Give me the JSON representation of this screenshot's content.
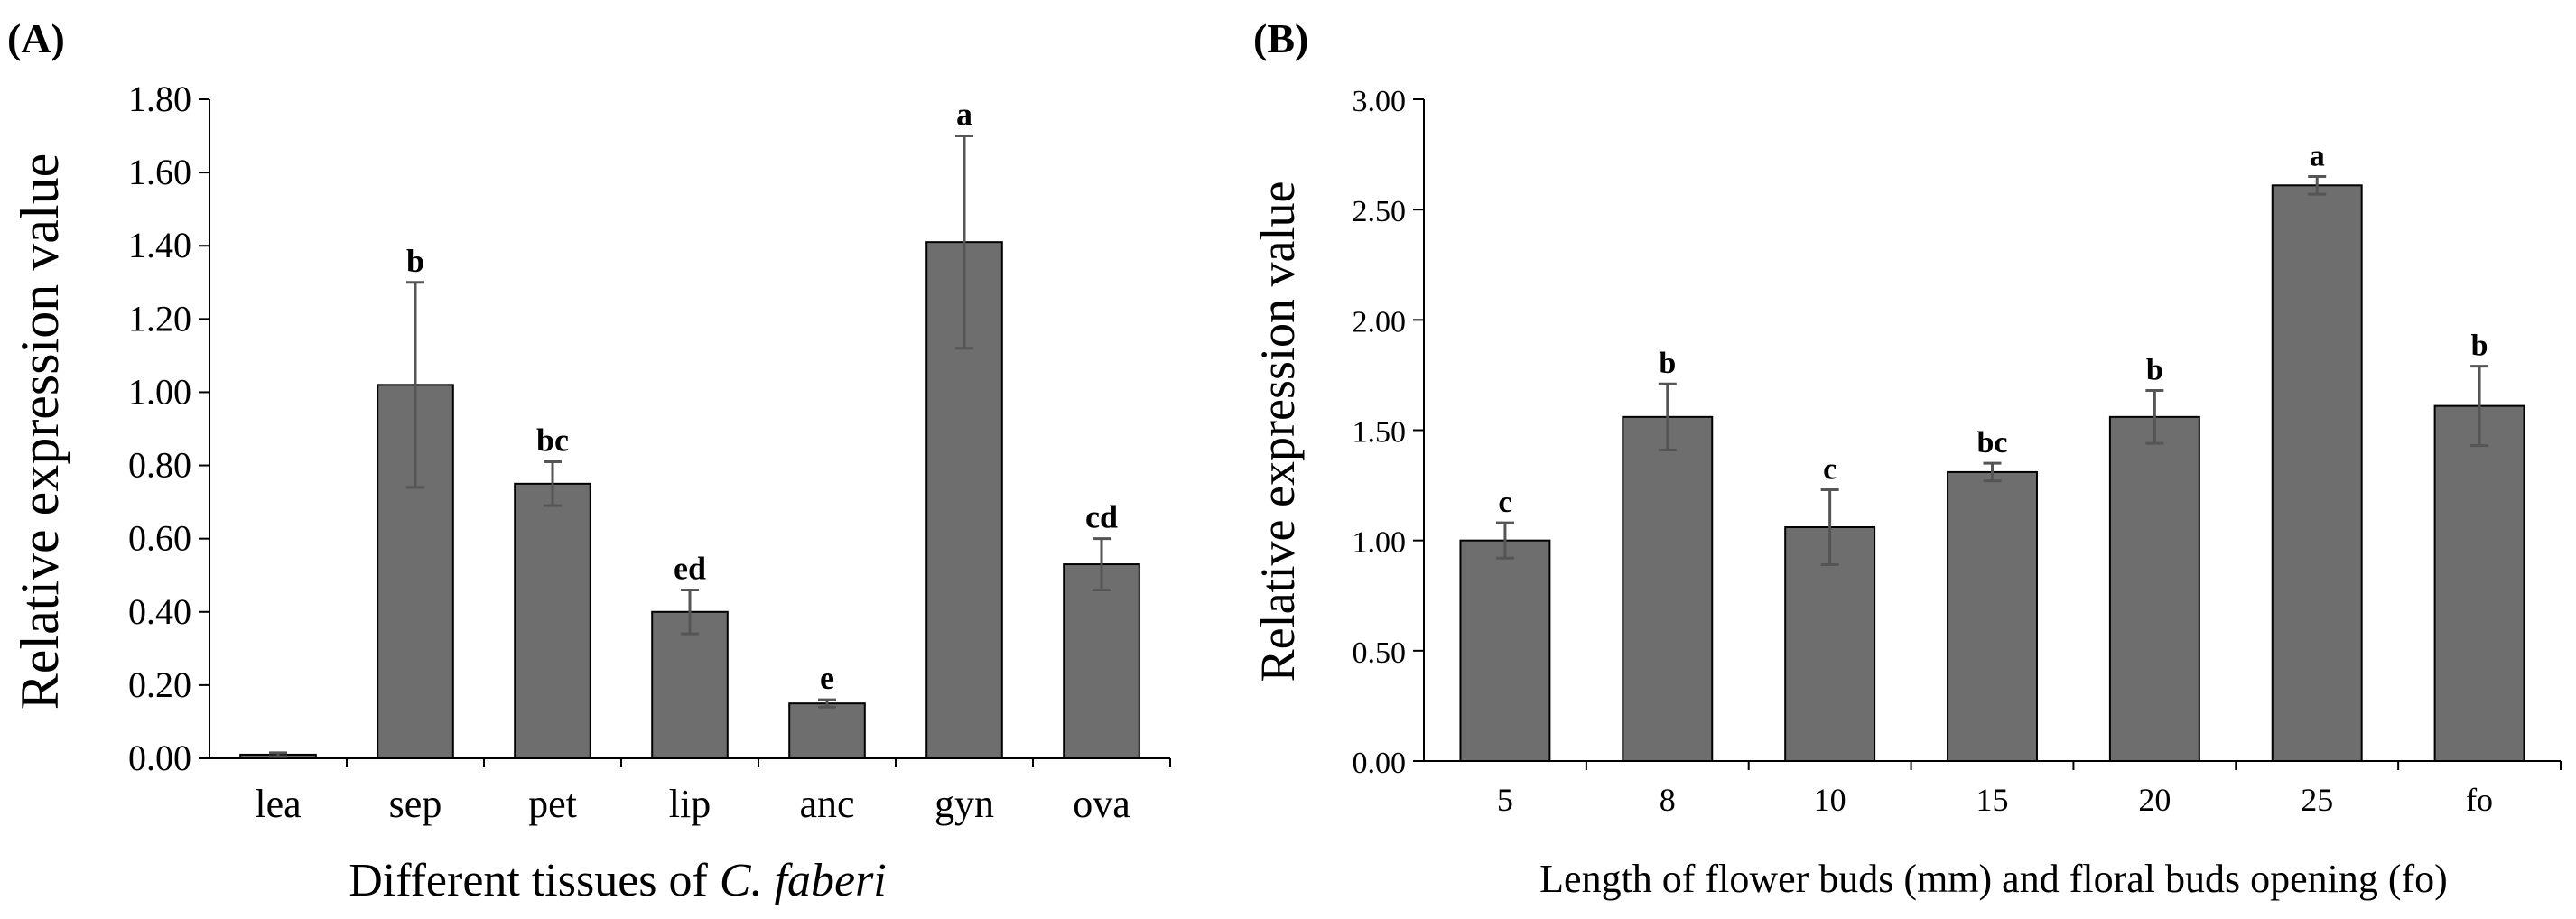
{
  "chart_data": [
    {
      "panel": "(A)",
      "type": "bar",
      "xlabel_prefix": "Different tissues of ",
      "xlabel_italic": "C. faberi",
      "ylabel": "Relative expression value",
      "ylim": [
        0,
        1.8
      ],
      "yticks": [
        "0.00",
        "0.20",
        "0.40",
        "0.60",
        "0.80",
        "1.00",
        "1.20",
        "1.40",
        "1.60",
        "1.80"
      ],
      "categories": [
        "lea",
        "sep",
        "pet",
        "lip",
        "anc",
        "gyn",
        "ova"
      ],
      "values": [
        0.01,
        1.02,
        0.75,
        0.4,
        0.15,
        1.41,
        0.53
      ],
      "errors": [
        0.005,
        0.28,
        0.06,
        0.06,
        0.01,
        0.29,
        0.07
      ],
      "significance": [
        "",
        "b",
        "bc",
        "ed",
        "e",
        "a",
        "cd"
      ],
      "bar_color": "#6e6e6e",
      "grid": false
    },
    {
      "panel": "(B)",
      "type": "bar",
      "xlabel": "Length of flower buds (mm) and floral buds opening (fo)",
      "ylabel": "Relative expression value",
      "ylim": [
        0,
        3.0
      ],
      "yticks": [
        "0.00",
        "0.50",
        "1.00",
        "1.50",
        "2.00",
        "2.50",
        "3.00"
      ],
      "categories": [
        "5",
        "8",
        "10",
        "15",
        "20",
        "25",
        "fo"
      ],
      "values": [
        1.0,
        1.56,
        1.06,
        1.31,
        1.56,
        2.61,
        1.61
      ],
      "errors": [
        0.08,
        0.15,
        0.17,
        0.04,
        0.12,
        0.04,
        0.18
      ],
      "significance": [
        "c",
        "b",
        "c",
        "bc",
        "b",
        "a",
        "b"
      ],
      "bar_color": "#6e6e6e",
      "grid": false
    }
  ]
}
